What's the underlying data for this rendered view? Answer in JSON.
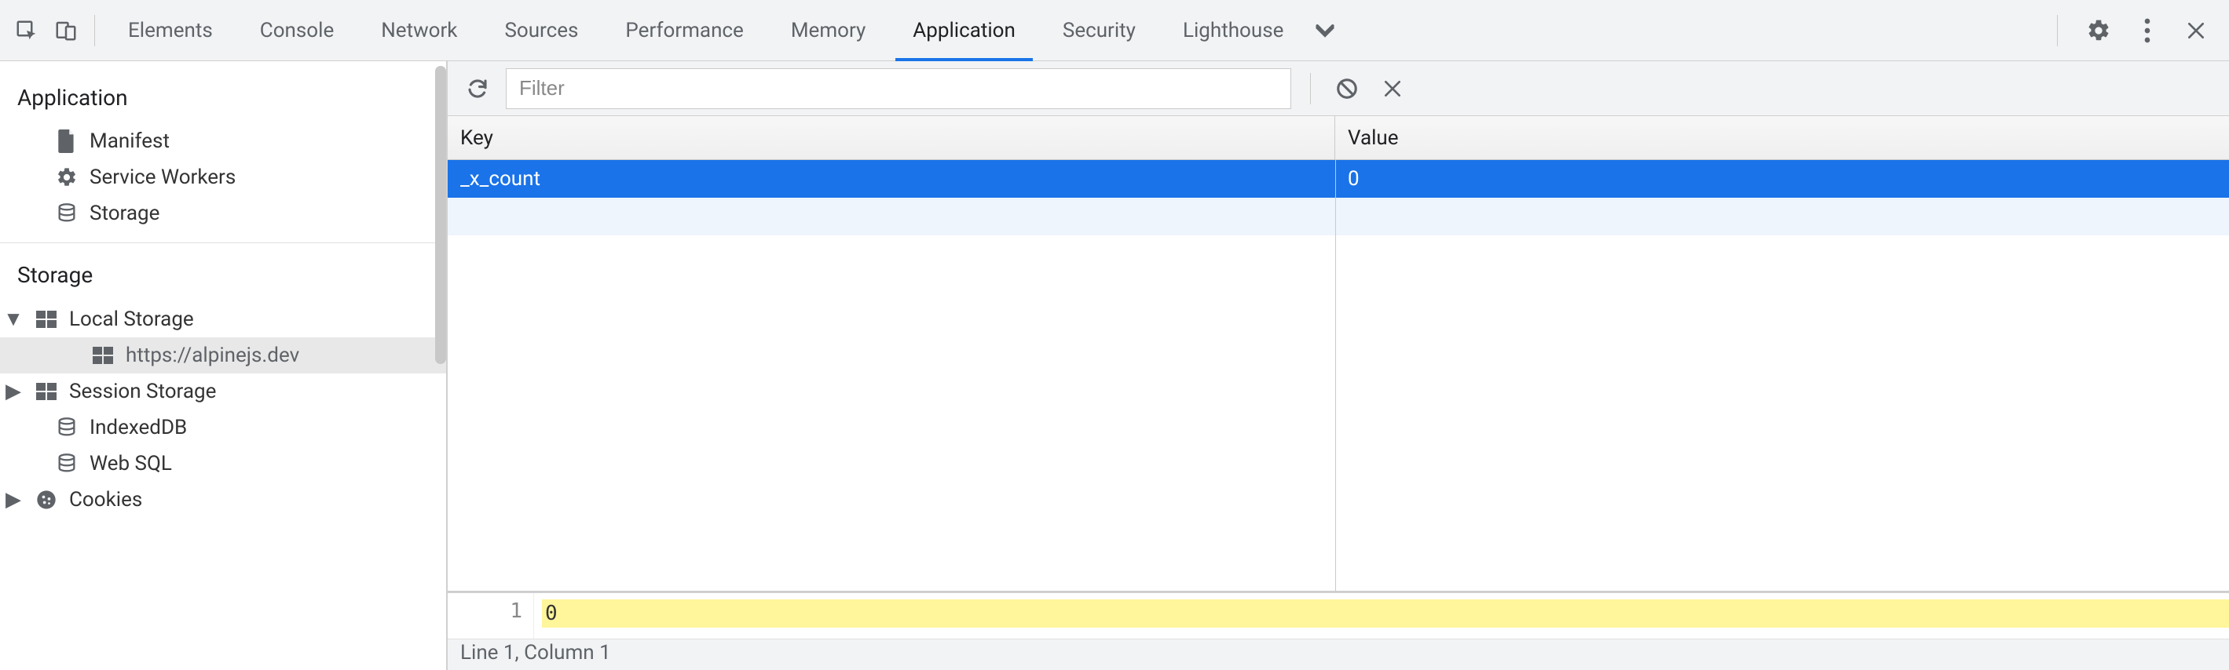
{
  "colors": {
    "accent": "#1a73e8",
    "tab_underline": "#1a73e8",
    "row_selected_bg": "#1a73e8",
    "row_selected_fg": "#ffffff",
    "row_alt_bg": "#eef5fd",
    "highlight_bg": "#fff59a",
    "border": "#d0d0d0",
    "muted": "#5f6368"
  },
  "topbar": {
    "tabs": [
      {
        "label": "Elements",
        "active": false
      },
      {
        "label": "Console",
        "active": false
      },
      {
        "label": "Network",
        "active": false
      },
      {
        "label": "Sources",
        "active": false
      },
      {
        "label": "Performance",
        "active": false
      },
      {
        "label": "Memory",
        "active": false
      },
      {
        "label": "Application",
        "active": true
      },
      {
        "label": "Security",
        "active": false
      },
      {
        "label": "Lighthouse",
        "active": false
      }
    ]
  },
  "sidebar": {
    "sections": [
      {
        "title": "Application",
        "items": [
          {
            "icon": "file",
            "label": "Manifest",
            "level": 0
          },
          {
            "icon": "gear",
            "label": "Service Workers",
            "level": 0
          },
          {
            "icon": "db",
            "label": "Storage",
            "level": 0
          }
        ]
      },
      {
        "title": "Storage",
        "items": [
          {
            "icon": "grid",
            "label": "Local Storage",
            "level": 1,
            "disclosure": "down"
          },
          {
            "icon": "grid",
            "label": "https://alpinejs.dev",
            "level": 2,
            "selected": true
          },
          {
            "icon": "grid",
            "label": "Session Storage",
            "level": 1,
            "disclosure": "right"
          },
          {
            "icon": "db",
            "label": "IndexedDB",
            "level": 0
          },
          {
            "icon": "db",
            "label": "Web SQL",
            "level": 0
          },
          {
            "icon": "cookie",
            "label": "Cookies",
            "level": 1,
            "disclosure": "right"
          }
        ]
      }
    ]
  },
  "toolbar": {
    "filter_placeholder": "Filter"
  },
  "table": {
    "headers": {
      "key": "Key",
      "value": "Value"
    },
    "rows": [
      {
        "key": "_x_count",
        "value": "0",
        "selected": true
      }
    ]
  },
  "editor": {
    "line_number": "1",
    "content": "0"
  },
  "status": {
    "text": "Line 1, Column 1"
  }
}
